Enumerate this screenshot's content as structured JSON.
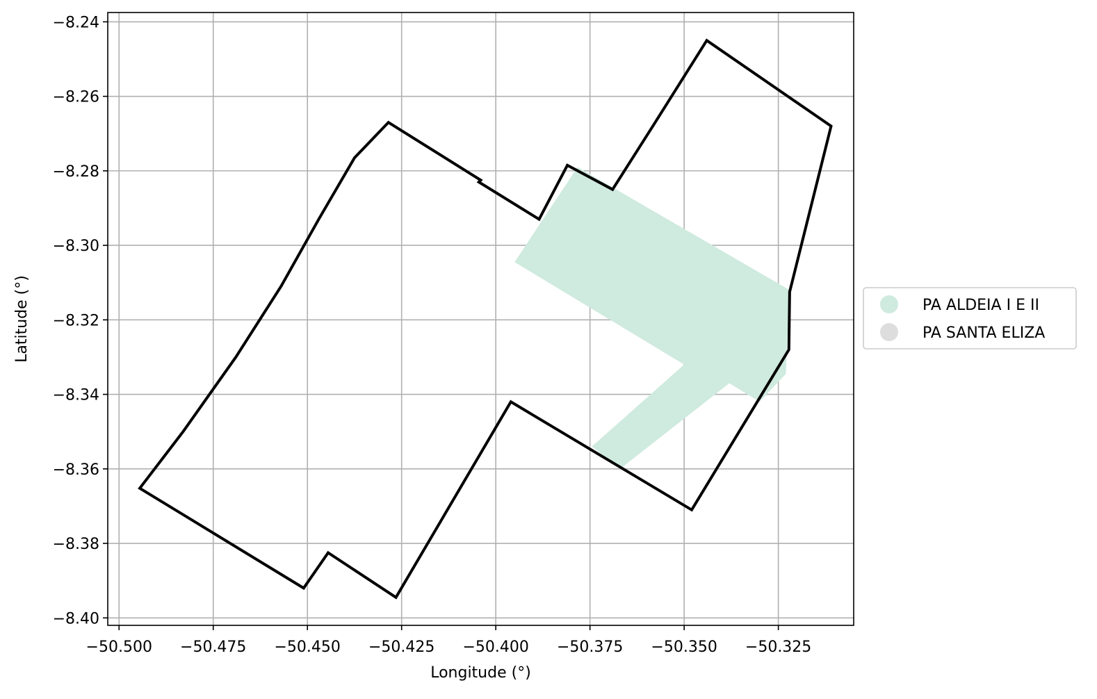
{
  "map": {
    "xlabel": "Longitude (°)",
    "ylabel": "Latitude (°)",
    "xlim": [
      -50.503,
      -50.305
    ],
    "ylim": [
      -8.402,
      -8.2375
    ],
    "x_ticks": [
      -50.5,
      -50.475,
      -50.45,
      -50.425,
      -50.4,
      -50.375,
      -50.35,
      -50.325
    ],
    "x_tick_labels": [
      "−50.500",
      "−50.475",
      "−50.450",
      "−50.425",
      "−50.400",
      "−50.375",
      "−50.350",
      "−50.325"
    ],
    "y_ticks": [
      -8.24,
      -8.26,
      -8.28,
      -8.3,
      -8.32,
      -8.34,
      -8.36,
      -8.38,
      -8.4
    ],
    "y_tick_labels": [
      "−8.24",
      "−8.26",
      "−8.28",
      "−8.30",
      "−8.32",
      "−8.34",
      "−8.36",
      "−8.38",
      "−8.40"
    ],
    "grid": true,
    "legend_position": "right",
    "legend": [
      {
        "label": "PA ALDEIA I E II",
        "color": "#cfeadf"
      },
      {
        "label": "PA SANTA ELIZA",
        "color": "#dddddd"
      }
    ],
    "fill_color": "#cfeadf",
    "boundary_color": "#000000",
    "aldeia_polygon": [
      [
        -50.3783,
        -8.279
      ],
      [
        -50.322,
        -8.312
      ],
      [
        -50.323,
        -8.3345
      ],
      [
        -50.33,
        -8.342
      ],
      [
        -50.338,
        -8.337
      ],
      [
        -50.367,
        -8.36
      ],
      [
        -50.3745,
        -8.354
      ],
      [
        -50.35,
        -8.332
      ],
      [
        -50.395,
        -8.3045
      ]
    ],
    "boundary_polygon": [
      [
        -50.4945,
        -8.3652
      ],
      [
        -50.483,
        -8.35
      ],
      [
        -50.469,
        -8.33
      ],
      [
        -50.457,
        -8.311
      ],
      [
        -50.447,
        -8.293
      ],
      [
        -50.4375,
        -8.2765
      ],
      [
        -50.4285,
        -8.267
      ],
      [
        -50.404,
        -8.2825
      ],
      [
        -50.4045,
        -8.283
      ],
      [
        -50.3885,
        -8.293
      ],
      [
        -50.381,
        -8.2785
      ],
      [
        -50.369,
        -8.285
      ],
      [
        -50.358,
        -8.2675
      ],
      [
        -50.344,
        -8.245
      ],
      [
        -50.311,
        -8.268
      ],
      [
        -50.322,
        -8.3125
      ],
      [
        -50.3222,
        -8.328
      ],
      [
        -50.324,
        -8.331
      ],
      [
        -50.348,
        -8.371
      ],
      [
        -50.396,
        -8.342
      ],
      [
        -50.4265,
        -8.3945
      ],
      [
        -50.4445,
        -8.3825
      ],
      [
        -50.451,
        -8.392
      ]
    ]
  }
}
